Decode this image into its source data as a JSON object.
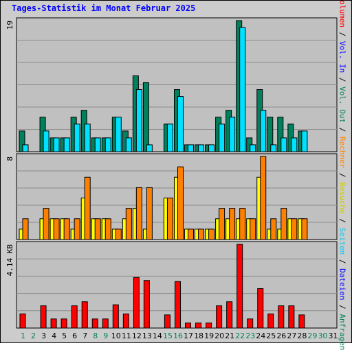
{
  "title": "Tages-Statistik im Monat Februar 2025",
  "colors": {
    "background": "#cccccc",
    "plot_bg": "#c0c0c0",
    "title": "#0000ff",
    "anfragen": "#00805c",
    "dateien": "#00e0ff",
    "seiten": "#00c8f0",
    "besuche": "#ffff00",
    "rechner": "#ff8000",
    "volumen": "#ff0000",
    "weekend_day": "#00805c",
    "weekday": "#000000",
    "grid": "#8c8c8c"
  },
  "legend": {
    "items": [
      {
        "label": "Volumen",
        "color": "#ff0000"
      },
      {
        "label": "Vol. In",
        "color": "#0000ff"
      },
      {
        "label": "Vol. Out",
        "color": "#00805c"
      },
      {
        "label": "Rechner",
        "color": "#ff8000"
      },
      {
        "label": "Besuche",
        "color": "#cccc00"
      },
      {
        "label": "Seiten",
        "color": "#00c8f0"
      },
      {
        "label": "Dateien",
        "color": "#0000ff"
      },
      {
        "label": "Anfragen",
        "color": "#00805c"
      }
    ],
    "separator": " / "
  },
  "chart_data": [
    {
      "type": "bar",
      "panel": "top",
      "ymax_label": "19",
      "ylim": [
        0,
        19
      ],
      "categories": [
        "1",
        "2",
        "3",
        "4",
        "5",
        "6",
        "7",
        "8",
        "9",
        "10",
        "11",
        "12",
        "13",
        "14",
        "15",
        "16",
        "17",
        "18",
        "19",
        "20",
        "21",
        "22",
        "23",
        "24",
        "25",
        "26",
        "27",
        "28",
        "29",
        "30",
        "31"
      ],
      "weekend": [
        "1",
        "2",
        "8",
        "9",
        "15",
        "16",
        "22",
        "23",
        "29",
        "30"
      ],
      "series": [
        {
          "name": "Anfragen",
          "values": [
            3,
            0,
            5,
            2,
            2,
            5,
            6,
            2,
            2,
            5,
            3,
            11,
            10,
            0,
            4,
            9,
            1,
            1,
            1,
            5,
            6,
            19,
            2,
            9,
            5,
            5,
            4,
            3,
            0,
            0,
            0
          ]
        },
        {
          "name": "Dateien",
          "values": [
            1,
            0,
            3,
            2,
            2,
            4,
            4,
            2,
            2,
            5,
            2,
            9,
            1,
            0,
            4,
            8,
            1,
            1,
            1,
            4,
            5,
            18,
            1,
            6,
            1,
            2,
            2,
            3,
            0,
            0,
            0
          ]
        }
      ]
    },
    {
      "type": "bar",
      "panel": "middle",
      "ymax_label": "8",
      "ylim": [
        0,
        8
      ],
      "categories": [
        "1",
        "2",
        "3",
        "4",
        "5",
        "6",
        "7",
        "8",
        "9",
        "10",
        "11",
        "12",
        "13",
        "14",
        "15",
        "16",
        "17",
        "18",
        "19",
        "20",
        "21",
        "22",
        "23",
        "24",
        "25",
        "26",
        "27",
        "28",
        "29",
        "30",
        "31"
      ],
      "series": [
        {
          "name": "Besuche",
          "values": [
            1,
            0,
            2,
            2,
            2,
            1,
            4,
            2,
            2,
            1,
            2,
            3,
            1,
            0,
            4,
            6,
            1,
            1,
            1,
            2,
            2,
            2,
            2,
            6,
            1,
            1,
            2,
            2,
            0,
            0,
            0
          ]
        },
        {
          "name": "Rechner",
          "values": [
            2,
            0,
            3,
            2,
            2,
            2,
            6,
            2,
            2,
            1,
            3,
            5,
            5,
            0,
            4,
            7,
            1,
            1,
            1,
            3,
            3,
            3,
            2,
            8,
            2,
            3,
            2,
            2,
            0,
            0,
            0
          ]
        }
      ]
    },
    {
      "type": "bar",
      "panel": "bottom",
      "ymax_label": "4.14 KB",
      "ylabel": "KB",
      "ylim": [
        0,
        4.14
      ],
      "categories": [
        "1",
        "2",
        "3",
        "4",
        "5",
        "6",
        "7",
        "8",
        "9",
        "10",
        "11",
        "12",
        "13",
        "14",
        "15",
        "16",
        "17",
        "18",
        "19",
        "20",
        "21",
        "22",
        "23",
        "24",
        "25",
        "26",
        "27",
        "28",
        "29",
        "30",
        "31"
      ],
      "series": [
        {
          "name": "Volumen",
          "values": [
            0.7,
            0,
            1.1,
            0.45,
            0.45,
            1.1,
            1.3,
            0.45,
            0.45,
            1.15,
            0.7,
            2.5,
            2.35,
            0,
            0.65,
            2.3,
            0.25,
            0.25,
            0.25,
            1.1,
            1.3,
            4.14,
            0.45,
            1.95,
            0.7,
            1.1,
            1.1,
            0.65,
            0,
            0,
            0
          ]
        }
      ]
    }
  ]
}
